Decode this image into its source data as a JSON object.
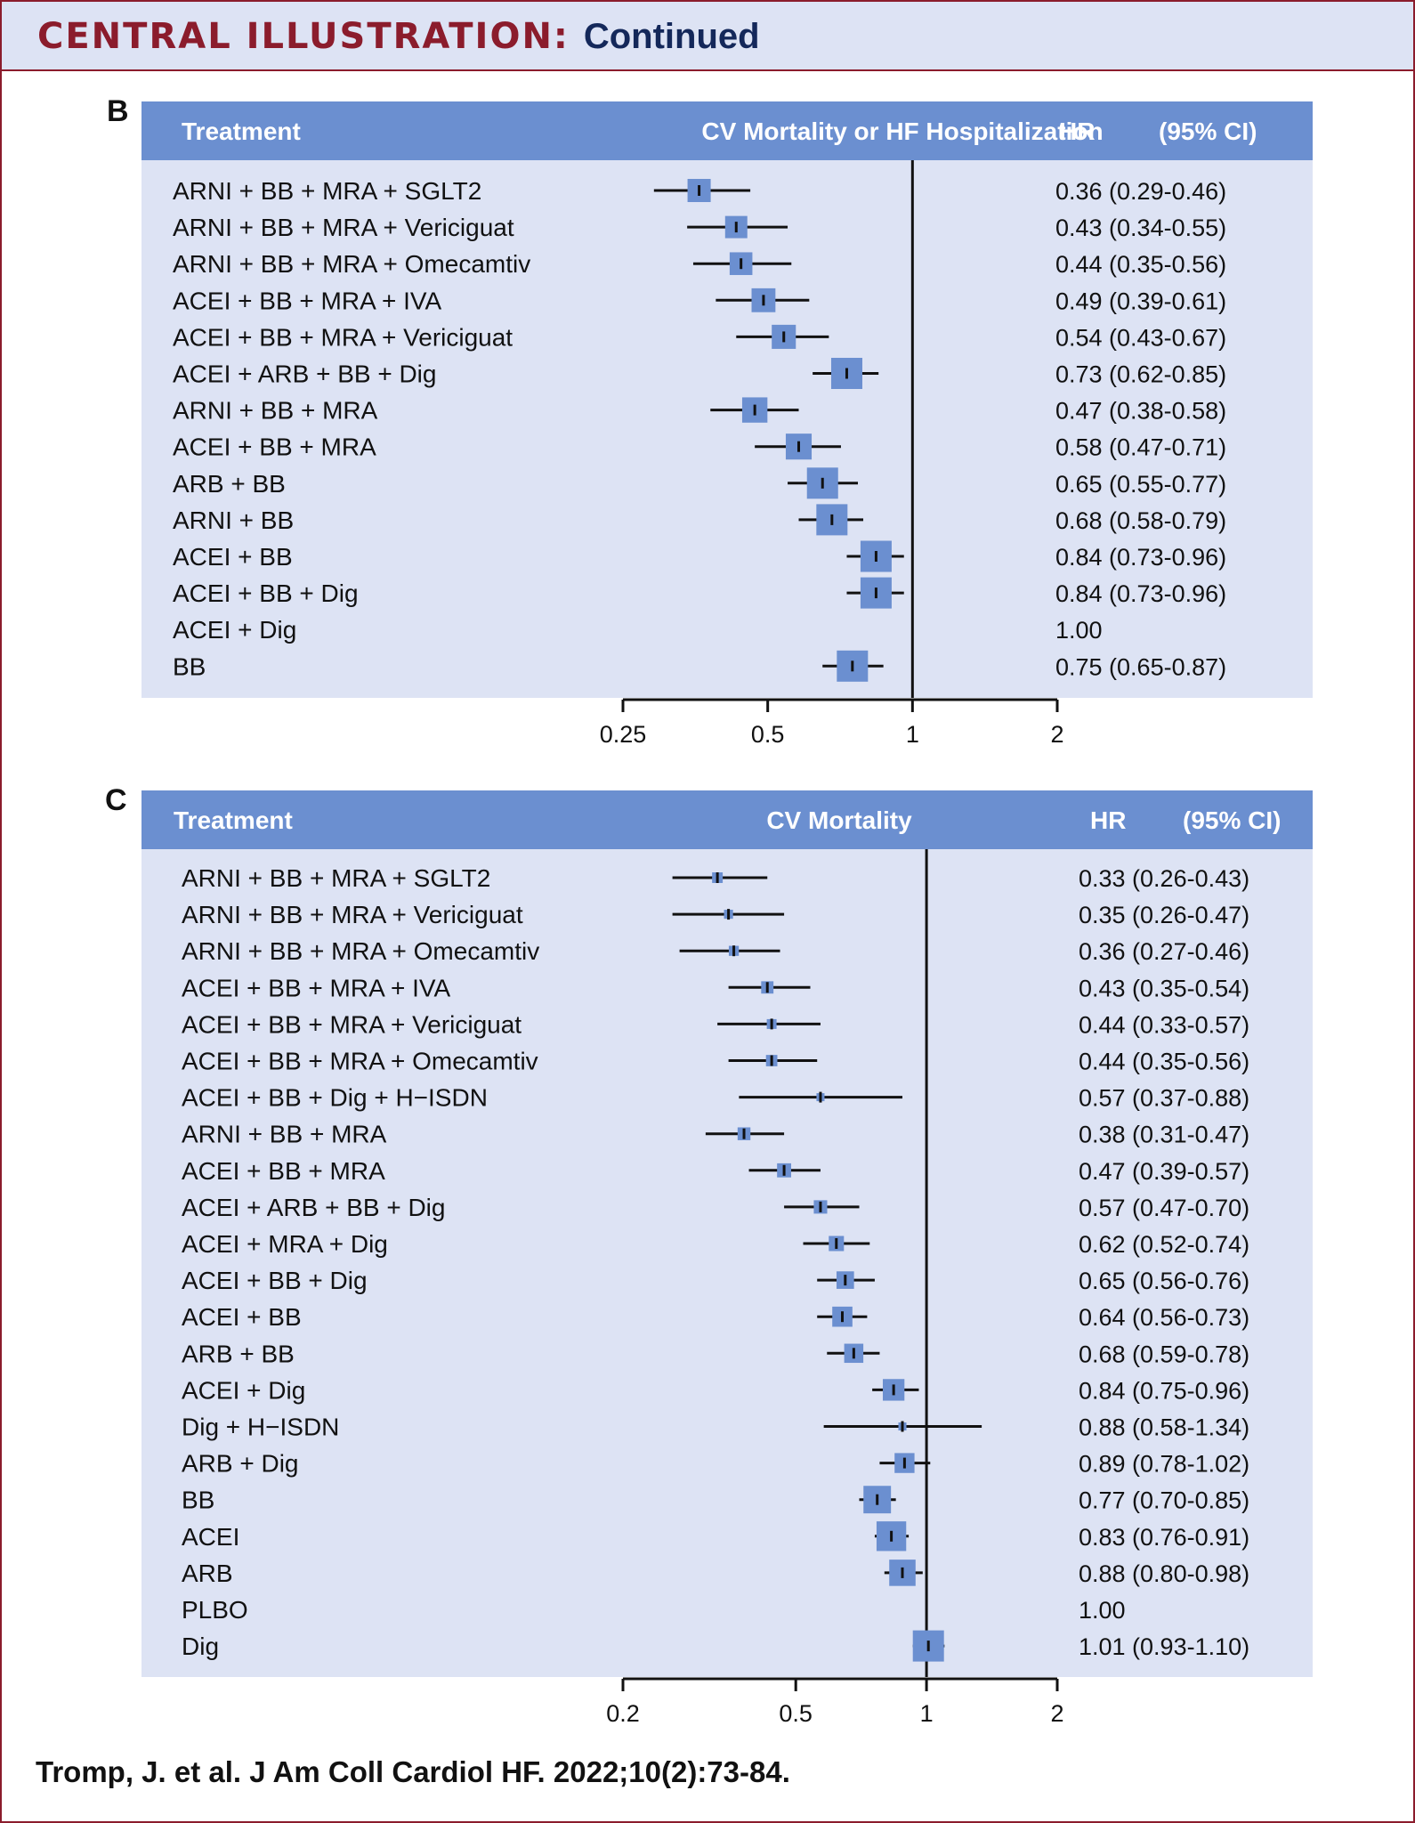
{
  "header": {
    "title_main": "CENTRAL ILLUSTRATION:",
    "title_sub": "Continued"
  },
  "citation": "Tromp, J. et al. J Am Coll Cardiol HF. 2022;10(2):73-84.",
  "colors": {
    "header_band": "#6b8fd0",
    "panel_bg": "#dde3f4",
    "marker": "#6b8fd0",
    "title_red": "#8b1c2c",
    "title_navy": "#14285a"
  },
  "chart_data": [
    {
      "panel": "B",
      "type": "forest",
      "columns": {
        "treatment": "Treatment",
        "outcome": "CV Mortality or HF Hospitalization",
        "hr": "HR",
        "ci": "(95% CI)"
      },
      "x_scale": "log",
      "xlim": [
        0.25,
        2
      ],
      "reference_line": 1,
      "x_ticks": [
        0.25,
        0.5,
        1,
        2
      ],
      "x_tick_labels": [
        "0.25",
        "0.5",
        "1",
        "2"
      ],
      "rows": [
        {
          "label": "ARNI + BB + MRA + SGLT2",
          "hr": 0.36,
          "lo": 0.29,
          "hi": 0.46,
          "text": "0.36 (0.29-0.46)"
        },
        {
          "label": "ARNI + BB + MRA + Vericiguat",
          "hr": 0.43,
          "lo": 0.34,
          "hi": 0.55,
          "text": "0.43 (0.34-0.55)"
        },
        {
          "label": "ARNI + BB + MRA + Omecamtiv",
          "hr": 0.44,
          "lo": 0.35,
          "hi": 0.56,
          "text": "0.44 (0.35-0.56)"
        },
        {
          "label": "ACEI + BB + MRA + IVA",
          "hr": 0.49,
          "lo": 0.39,
          "hi": 0.61,
          "text": "0.49 (0.39-0.61)"
        },
        {
          "label": "ACEI + BB + MRA + Vericiguat",
          "hr": 0.54,
          "lo": 0.43,
          "hi": 0.67,
          "text": "0.54 (0.43-0.67)"
        },
        {
          "label": "ACEI + ARB + BB + Dig",
          "hr": 0.73,
          "lo": 0.62,
          "hi": 0.85,
          "text": "0.73 (0.62-0.85)"
        },
        {
          "label": "ARNI + BB + MRA",
          "hr": 0.47,
          "lo": 0.38,
          "hi": 0.58,
          "text": "0.47 (0.38-0.58)"
        },
        {
          "label": "ACEI + BB + MRA",
          "hr": 0.58,
          "lo": 0.47,
          "hi": 0.71,
          "text": "0.58 (0.47-0.71)"
        },
        {
          "label": "ARB + BB",
          "hr": 0.65,
          "lo": 0.55,
          "hi": 0.77,
          "text": "0.65 (0.55-0.77)"
        },
        {
          "label": "ARNI + BB",
          "hr": 0.68,
          "lo": 0.58,
          "hi": 0.79,
          "text": "0.68 (0.58-0.79)"
        },
        {
          "label": "ACEI + BB",
          "hr": 0.84,
          "lo": 0.73,
          "hi": 0.96,
          "text": "0.84 (0.73-0.96)"
        },
        {
          "label": "ACEI + BB + Dig",
          "hr": 0.84,
          "lo": 0.73,
          "hi": 0.96,
          "text": "0.84 (0.73-0.96)"
        },
        {
          "label": "ACEI +  Dig",
          "hr": 1.0,
          "lo": null,
          "hi": null,
          "text": "1.00"
        },
        {
          "label": "BB",
          "hr": 0.75,
          "lo": 0.65,
          "hi": 0.87,
          "text": "0.75 (0.65-0.87)"
        }
      ]
    },
    {
      "panel": "C",
      "type": "forest",
      "columns": {
        "treatment": "Treatment",
        "outcome": "CV Mortality",
        "hr": "HR",
        "ci": "(95% CI)"
      },
      "x_scale": "log",
      "xlim": [
        0.2,
        2
      ],
      "reference_line": 1,
      "x_ticks": [
        0.2,
        0.5,
        1,
        2
      ],
      "x_tick_labels": [
        "0.2",
        "0.5",
        "1",
        "2"
      ],
      "rows": [
        {
          "label": "ARNI + BB + MRA + SGLT2",
          "hr": 0.33,
          "lo": 0.26,
          "hi": 0.43,
          "text": "0.33 (0.26-0.43)"
        },
        {
          "label": "ARNI + BB + MRA + Vericiguat",
          "hr": 0.35,
          "lo": 0.26,
          "hi": 0.47,
          "text": "0.35 (0.26-0.47)"
        },
        {
          "label": "ARNI + BB + MRA + Omecamtiv",
          "hr": 0.36,
          "lo": 0.27,
          "hi": 0.46,
          "text": "0.36 (0.27-0.46)"
        },
        {
          "label": "ACEI + BB + MRA + IVA",
          "hr": 0.43,
          "lo": 0.35,
          "hi": 0.54,
          "text": "0.43 (0.35-0.54)"
        },
        {
          "label": "ACEI + BB + MRA + Vericiguat",
          "hr": 0.44,
          "lo": 0.33,
          "hi": 0.57,
          "text": "0.44 (0.33-0.57)"
        },
        {
          "label": "ACEI + BB + MRA + Omecamtiv",
          "hr": 0.44,
          "lo": 0.35,
          "hi": 0.56,
          "text": "0.44 (0.35-0.56)"
        },
        {
          "label": "ACEI + BB + Dig + H−ISDN",
          "hr": 0.57,
          "lo": 0.37,
          "hi": 0.88,
          "text": "0.57 (0.37-0.88)"
        },
        {
          "label": "ARNI + BB + MRA",
          "hr": 0.38,
          "lo": 0.31,
          "hi": 0.47,
          "text": "0.38 (0.31-0.47)"
        },
        {
          "label": "ACEI + BB + MRA",
          "hr": 0.47,
          "lo": 0.39,
          "hi": 0.57,
          "text": "0.47 (0.39-0.57)"
        },
        {
          "label": "ACEI + ARB + BB + Dig",
          "hr": 0.57,
          "lo": 0.47,
          "hi": 0.7,
          "text": "0.57 (0.47-0.70)"
        },
        {
          "label": "ACEI + MRA + Dig",
          "hr": 0.62,
          "lo": 0.52,
          "hi": 0.74,
          "text": "0.62 (0.52-0.74)"
        },
        {
          "label": "ACEI + BB + Dig",
          "hr": 0.65,
          "lo": 0.56,
          "hi": 0.76,
          "text": "0.65 (0.56-0.76)"
        },
        {
          "label": "ACEI + BB",
          "hr": 0.64,
          "lo": 0.56,
          "hi": 0.73,
          "text": "0.64 (0.56-0.73)"
        },
        {
          "label": "ARB + BB",
          "hr": 0.68,
          "lo": 0.59,
          "hi": 0.78,
          "text": "0.68 (0.59-0.78)"
        },
        {
          "label": "ACEI + Dig",
          "hr": 0.84,
          "lo": 0.75,
          "hi": 0.96,
          "text": "0.84 (0.75-0.96)"
        },
        {
          "label": "Dig + H−ISDN",
          "hr": 0.88,
          "lo": 0.58,
          "hi": 1.34,
          "text": "0.88 (0.58-1.34)"
        },
        {
          "label": "ARB + Dig",
          "hr": 0.89,
          "lo": 0.78,
          "hi": 1.02,
          "text": "0.89 (0.78-1.02)"
        },
        {
          "label": "BB",
          "hr": 0.77,
          "lo": 0.7,
          "hi": 0.85,
          "text": "0.77 (0.70-0.85)"
        },
        {
          "label": "ACEI",
          "hr": 0.83,
          "lo": 0.76,
          "hi": 0.91,
          "text": "0.83 (0.76-0.91)"
        },
        {
          "label": "ARB",
          "hr": 0.88,
          "lo": 0.8,
          "hi": 0.98,
          "text": "0.88 (0.80-0.98)"
        },
        {
          "label": "PLBO",
          "hr": 1.0,
          "lo": null,
          "hi": null,
          "text": "1.00"
        },
        {
          "label": "Dig",
          "hr": 1.01,
          "lo": 0.93,
          "hi": 1.1,
          "text": "1.01 (0.93-1.10)"
        }
      ]
    }
  ]
}
